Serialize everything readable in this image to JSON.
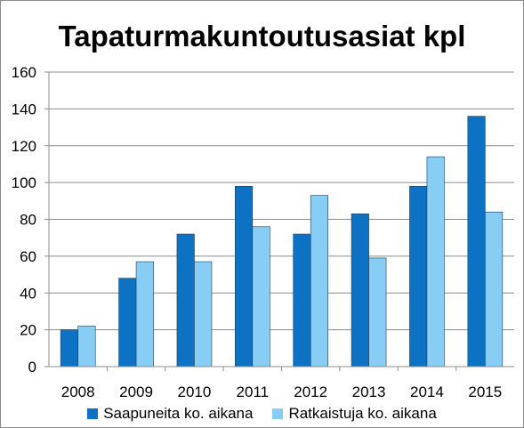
{
  "chart_data": {
    "type": "bar",
    "title": "Tapaturmakuntoutusasiat kpl",
    "categories": [
      "2008",
      "2009",
      "2010",
      "2011",
      "2012",
      "2013",
      "2014",
      "2015"
    ],
    "series": [
      {
        "name": "Saapuneita ko. aikana",
        "color": "#0e72c4",
        "values": [
          20,
          48,
          72,
          98,
          72,
          83,
          98,
          136
        ]
      },
      {
        "name": "Ratkaistuja ko. aikana",
        "color": "#87cdf5",
        "values": [
          22,
          57,
          57,
          76,
          93,
          59,
          114,
          84
        ]
      }
    ],
    "yticks": [
      "0",
      "20",
      "40",
      "60",
      "80",
      "100",
      "120",
      "140",
      "160"
    ],
    "ylim": [
      0,
      160
    ],
    "grid": true,
    "legend": "bottom"
  }
}
